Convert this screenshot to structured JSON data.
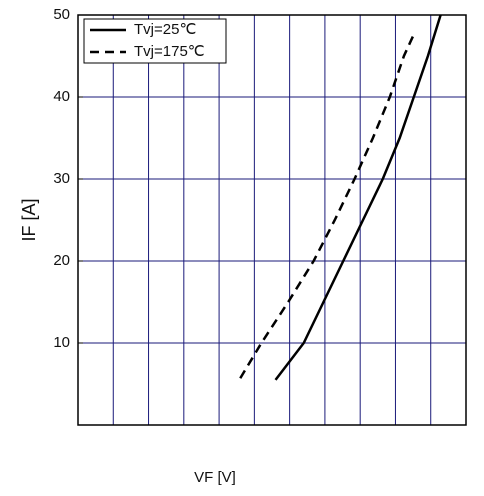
{
  "chart_data": {
    "type": "line",
    "x_label": "VF [V]",
    "y_label": "IF [A]",
    "xlim": [
      0,
      2.75
    ],
    "xticks": [
      0.25,
      0.5,
      0.75,
      1.0,
      1.25,
      1.5,
      1.75,
      2.0,
      2.25,
      2.5
    ],
    "ylim": [
      0,
      50
    ],
    "yticks": [
      10,
      20,
      30,
      40,
      50
    ],
    "grid": true,
    "legend": "upper-left",
    "series": [
      {
        "name": "Tvj=25℃",
        "color": "#000000",
        "dash": "solid",
        "x": [
          1.4,
          1.6,
          1.74,
          1.88,
          2.02,
          2.16,
          2.28,
          2.38,
          2.48,
          2.57
        ],
        "values": [
          5.5,
          10,
          15,
          20,
          25,
          30,
          35,
          40,
          45,
          50
        ]
      },
      {
        "name": "Tvj=175℃",
        "color": "#000000",
        "dash": "dashed",
        "x": [
          1.15,
          1.3,
          1.49,
          1.67,
          1.82,
          1.96,
          2.09,
          2.21,
          2.31,
          2.39
        ],
        "values": [
          5.7,
          10,
          15,
          20,
          25,
          30,
          35,
          40,
          45,
          48
        ]
      }
    ]
  }
}
